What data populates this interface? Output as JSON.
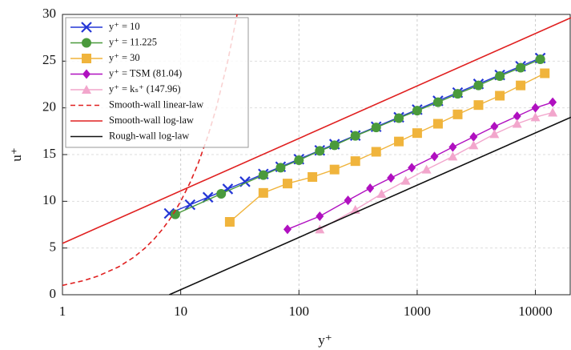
{
  "chart_data": {
    "type": "line",
    "xlabel": "y⁺",
    "ylabel": "u⁺",
    "xscale": "log",
    "xlim": [
      1,
      20000
    ],
    "ylim": [
      0,
      30
    ],
    "xticks": [
      1,
      10,
      100,
      1000,
      10000
    ],
    "yticks": [
      0,
      5,
      10,
      15,
      20,
      25,
      30
    ],
    "grid": true,
    "legend": "upper left",
    "series": [
      {
        "name": "y⁺ = 10",
        "color": "#2436d6",
        "marker": "x",
        "dash": "solid",
        "x": [
          8,
          12,
          17,
          25,
          35,
          50,
          70,
          100,
          150,
          200,
          300,
          450,
          700,
          1000,
          1500,
          2200,
          3300,
          5000,
          7500,
          11000
        ],
        "values": [
          8.7,
          9.63,
          10.43,
          11.32,
          12.1,
          12.92,
          13.69,
          14.51,
          15.45,
          16.11,
          17.04,
          17.98,
          18.99,
          19.81,
          20.75,
          21.63,
          22.56,
          23.52,
          24.45,
          25.33
        ]
      },
      {
        "name": "y⁺ = 11.225",
        "color": "#4a9a3c",
        "marker": "o",
        "dash": "solid",
        "x": [
          9,
          22,
          50,
          70,
          100,
          150,
          200,
          300,
          450,
          700,
          1000,
          1500,
          2200,
          3300,
          5000,
          7500,
          11000
        ],
        "values": [
          8.6,
          10.8,
          12.8,
          13.6,
          14.4,
          15.4,
          16.0,
          17.0,
          17.9,
          18.9,
          19.7,
          20.6,
          21.5,
          22.4,
          23.4,
          24.3,
          25.2
        ]
      },
      {
        "name": "y⁺ = 30",
        "color": "#f0b43c",
        "marker": "s",
        "dash": "solid",
        "x": [
          26,
          50,
          80,
          130,
          200,
          300,
          450,
          700,
          1000,
          1500,
          2200,
          3300,
          5000,
          7500,
          12000
        ],
        "values": [
          7.8,
          10.9,
          11.9,
          12.6,
          13.4,
          14.3,
          15.3,
          16.4,
          17.3,
          18.3,
          19.3,
          20.3,
          21.3,
          22.4,
          23.7
        ]
      },
      {
        "name": "y⁺ = TSM (81.04)",
        "color": "#b010c0",
        "marker": "d",
        "dash": "solid",
        "x": [
          80,
          150,
          260,
          400,
          600,
          900,
          1400,
          2000,
          3000,
          4500,
          7000,
          10000,
          14000
        ],
        "values": [
          7.0,
          8.4,
          10.1,
          11.4,
          12.5,
          13.6,
          14.8,
          15.8,
          16.9,
          18.0,
          19.1,
          20.0,
          20.6
        ]
      },
      {
        "name": "y⁺ = kₛ⁺ (147.96)",
        "color": "#f2a6cc",
        "marker": "^",
        "dash": "solid",
        "x": [
          150,
          300,
          500,
          800,
          1200,
          2000,
          3000,
          4500,
          7000,
          10000,
          14000
        ],
        "values": [
          7.0,
          9.1,
          10.8,
          12.2,
          13.4,
          14.8,
          16.0,
          17.2,
          18.3,
          19.0,
          19.5
        ]
      },
      {
        "name": "Smooth-wall linear-law",
        "color": "#e02020",
        "marker": "none",
        "dash": "dashed",
        "x": [
          1,
          1.5,
          2,
          3,
          4,
          5,
          6,
          7,
          8,
          9,
          10,
          12,
          14,
          17,
          20,
          25,
          30
        ],
        "values": [
          1,
          1.5,
          2,
          3,
          4,
          5,
          6,
          7,
          8,
          9,
          10,
          12,
          14,
          17,
          20,
          25,
          30
        ]
      },
      {
        "name": "Smooth-wall log-law",
        "color": "#e02020",
        "marker": "none",
        "dash": "solid",
        "x": [
          1,
          20000
        ],
        "values": [
          5.5,
          29.65
        ]
      },
      {
        "name": "Rough-wall log-law",
        "color": "#111111",
        "marker": "none",
        "dash": "solid",
        "x": [
          8,
          20000
        ],
        "values": [
          0,
          19.0
        ]
      }
    ]
  }
}
